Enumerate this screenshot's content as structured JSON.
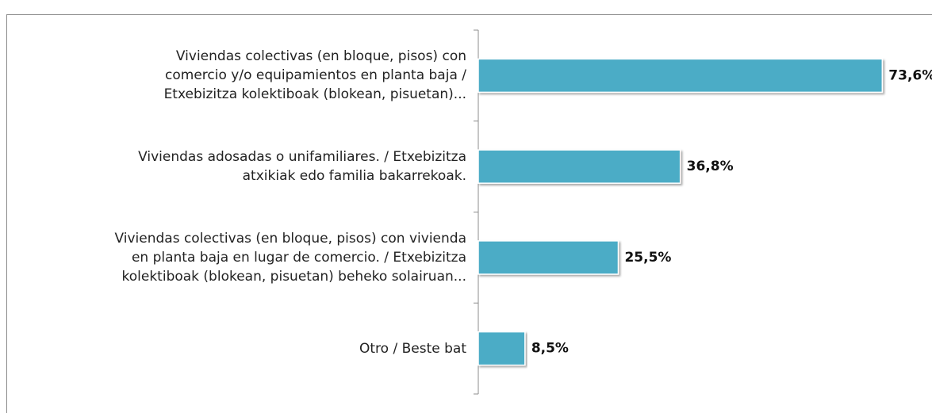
{
  "chart_data": {
    "type": "bar",
    "orientation": "horizontal",
    "categories": [
      "Viviendas colectivas (en bloque, pisos) con\ncomercio y/o equipamientos en planta baja /\nEtxebizitza kolektiboak (blokean, pisuetan)...",
      "Viviendas adosadas o unifamiliares. /  Etxebizitza\natxikiak edo familia bakarrekoak.",
      "Viviendas colectivas (en bloque, pisos) con vivienda\nen planta baja en lugar de comercio. / Etxebizitza\nkolektiboak (blokean, pisuetan) beheko solairuan...",
      "Otro / Beste bat"
    ],
    "values": [
      73.6,
      36.8,
      25.5,
      8.5
    ],
    "value_labels": [
      "73,6%",
      "36,8%",
      "25,5%",
      "8,5%"
    ],
    "color": "#4bacc6"
  }
}
